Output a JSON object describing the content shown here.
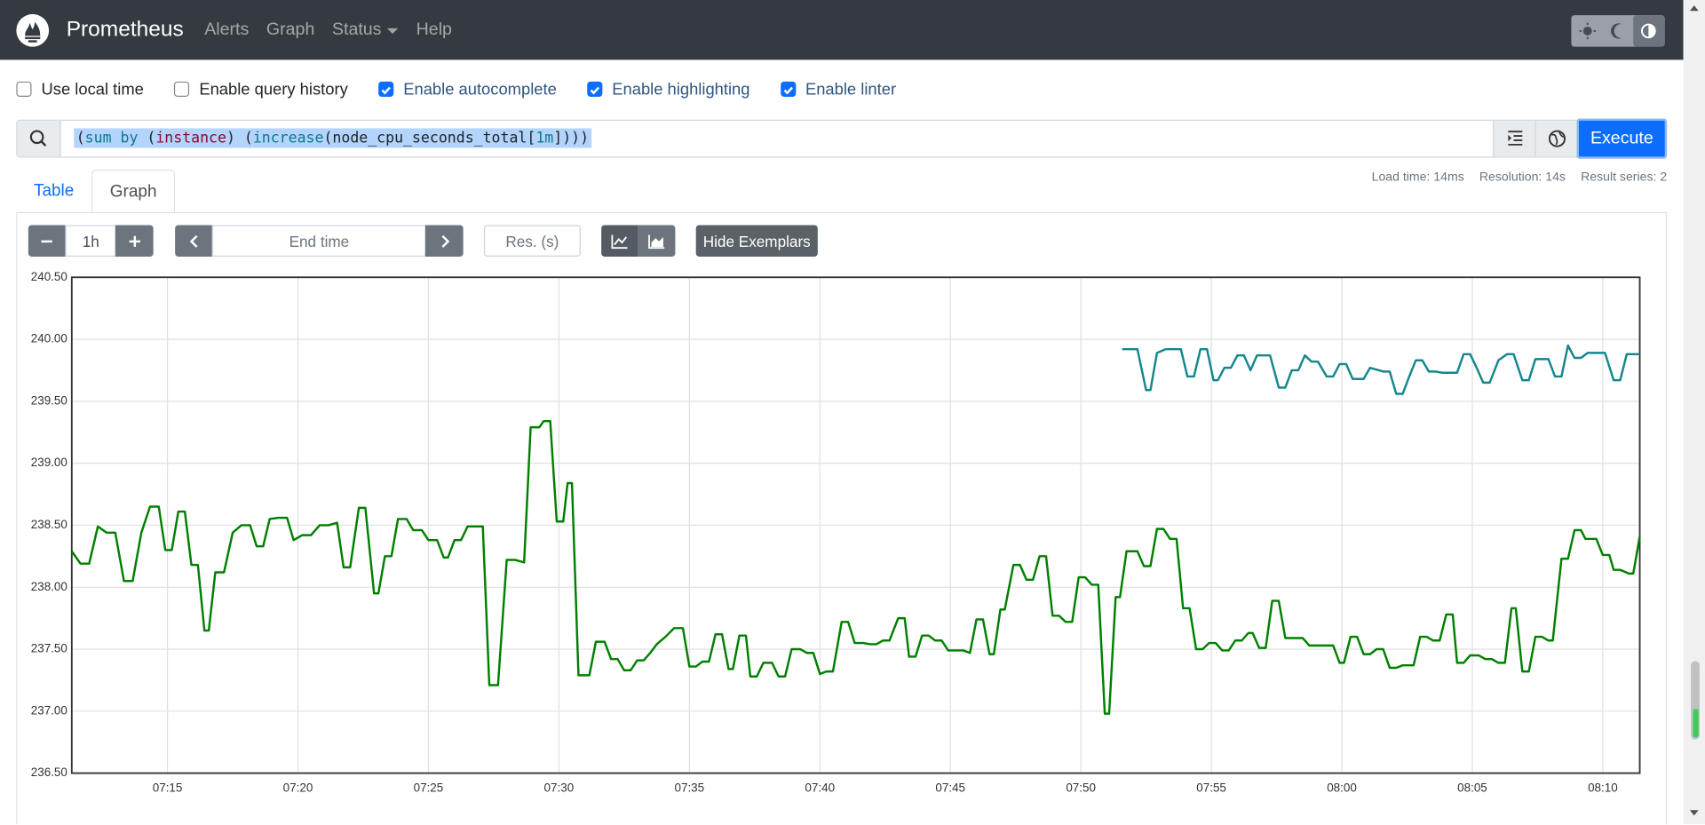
{
  "navbar": {
    "brand": "Prometheus",
    "links": [
      "Alerts",
      "Graph",
      "Status",
      "Help"
    ]
  },
  "options": [
    {
      "label": "Use local time",
      "checked": false
    },
    {
      "label": "Enable query history",
      "checked": false
    },
    {
      "label": "Enable autocomplete",
      "checked": true
    },
    {
      "label": "Enable highlighting",
      "checked": true
    },
    {
      "label": "Enable linter",
      "checked": true
    }
  ],
  "query": {
    "tokens": [
      {
        "text": "(",
        "color": "#212529"
      },
      {
        "text": "sum by",
        "color": "#0b7a86"
      },
      {
        "text": " (",
        "color": "#212529"
      },
      {
        "text": "instance",
        "color": "#8b0a2a"
      },
      {
        "text": ") (",
        "color": "#212529"
      },
      {
        "text": "increase",
        "color": "#0b7a86"
      },
      {
        "text": "(node_cpu_seconds_total[",
        "color": "#212529"
      },
      {
        "text": "1m",
        "color": "#0b7a86"
      },
      {
        "text": "])))",
        "color": "#212529"
      }
    ],
    "execute": "Execute"
  },
  "tabs": [
    "Table",
    "Graph"
  ],
  "stats": [
    "Load time: 14ms",
    "Resolution: 14s",
    "Result series: 2"
  ],
  "controls": {
    "range": "1h",
    "end_time": "End time",
    "resolution": "Res. (s)",
    "exemplars": "Hide Exemplars"
  },
  "chart_data": {
    "type": "line",
    "xlim": [
      "07:11:20",
      "08:11:25"
    ],
    "xticks": [
      "07:15",
      "07:20",
      "07:25",
      "07:30",
      "07:35",
      "07:40",
      "07:45",
      "07:50",
      "07:55",
      "08:00",
      "08:05",
      "08:10"
    ],
    "ylim": [
      236.5,
      240.5
    ],
    "yticks": [
      {
        "value": 236.5,
        "label": "236.50"
      },
      {
        "value": 237,
        "label": "237.00"
      },
      {
        "value": 237.5,
        "label": "237.50"
      },
      {
        "value": 238,
        "label": "238.00"
      },
      {
        "value": 238.5,
        "label": "238.50"
      },
      {
        "value": 239,
        "label": "239.00"
      },
      {
        "value": 239.5,
        "label": "239.50"
      },
      {
        "value": 240,
        "label": "240.00"
      },
      {
        "value": 240.5,
        "label": "240.50"
      }
    ],
    "grid": true,
    "series": [
      {
        "color": "#008000",
        "x": [
          "07:11:20",
          "07:11:40",
          "07:12:00",
          "07:12:20",
          "07:12:40",
          "07:13:00",
          "07:13:20",
          "07:13:40",
          "07:14:00",
          "07:14:20",
          "07:14:40",
          "07:14:55",
          "07:15:10",
          "07:15:25",
          "07:15:40",
          "07:15:55",
          "07:16:10",
          "07:16:25",
          "07:16:35",
          "07:16:50",
          "07:17:10",
          "07:17:30",
          "07:17:50",
          "07:18:10",
          "07:18:25",
          "07:18:40",
          "07:18:55",
          "07:19:15",
          "07:19:35",
          "07:19:50",
          "07:20:10",
          "07:20:30",
          "07:20:50",
          "07:21:10",
          "07:21:30",
          "07:21:45",
          "07:22:00",
          "07:22:20",
          "07:22:35",
          "07:22:55",
          "07:23:05",
          "07:23:20",
          "07:23:35",
          "07:23:50",
          "07:24:10",
          "07:24:25",
          "07:24:45",
          "07:25:00",
          "07:25:20",
          "07:25:35",
          "07:25:45",
          "07:26:00",
          "07:26:15",
          "07:26:30",
          "07:26:50",
          "07:27:05",
          "07:27:20",
          "07:27:40",
          "07:28:00",
          "07:28:20",
          "07:28:40",
          "07:28:55",
          "07:29:15",
          "07:29:25",
          "07:29:40",
          "07:29:55",
          "07:30:10",
          "07:30:20",
          "07:30:30",
          "07:30:45",
          "07:31:10",
          "07:31:25",
          "07:31:45",
          "07:32:00",
          "07:32:15",
          "07:32:30",
          "07:32:45",
          "07:33:00",
          "07:33:15",
          "07:33:30",
          "07:33:45",
          "07:34:05",
          "07:34:25",
          "07:34:45",
          "07:35:00",
          "07:35:15",
          "07:35:30",
          "07:35:45",
          "07:36:00",
          "07:36:15",
          "07:36:30",
          "07:36:40",
          "07:36:55",
          "07:37:10",
          "07:37:20",
          "07:37:35",
          "07:37:50",
          "07:38:10",
          "07:38:25",
          "07:38:40",
          "07:38:55",
          "07:39:15",
          "07:39:30",
          "07:39:45",
          "07:40:00",
          "07:40:15",
          "07:40:30",
          "07:40:50",
          "07:41:05",
          "07:41:20",
          "07:41:40",
          "07:41:55",
          "07:42:10",
          "07:42:25",
          "07:42:40",
          "07:43:00",
          "07:43:15",
          "07:43:25",
          "07:43:40",
          "07:43:55",
          "07:44:10",
          "07:44:25",
          "07:44:40",
          "07:44:55",
          "07:45:10",
          "07:45:30",
          "07:45:45",
          "07:46:00",
          "07:46:15",
          "07:46:30",
          "07:46:40",
          "07:46:55",
          "07:47:05",
          "07:47:25",
          "07:47:40",
          "07:47:55",
          "07:48:10",
          "07:48:25",
          "07:48:40",
          "07:48:55",
          "07:49:10",
          "07:49:25",
          "07:49:40",
          "07:49:55",
          "07:50:10",
          "07:50:25",
          "07:50:40",
          "07:50:55",
          "07:51:05",
          "07:51:20",
          "07:51:30",
          "07:51:45",
          "07:52:10",
          "07:52:25",
          "07:52:40",
          "07:52:55",
          "07:53:10",
          "07:53:25",
          "07:53:40",
          "07:53:55",
          "07:54:10",
          "07:54:25",
          "07:54:40",
          "07:54:55",
          "07:55:10",
          "07:55:25",
          "07:55:40",
          "07:55:55",
          "07:56:10",
          "07:56:25",
          "07:56:35",
          "07:56:50",
          "07:57:05",
          "07:57:20",
          "07:57:35",
          "07:57:50",
          "07:58:30",
          "07:58:45",
          "07:59:40",
          "07:59:55",
          "08:00:05",
          "08:00:20",
          "08:00:35",
          "08:00:50",
          "08:01:05",
          "08:01:20",
          "08:01:35",
          "08:01:50",
          "08:02:05",
          "08:02:20",
          "08:02:45",
          "08:03:00",
          "08:03:15",
          "08:03:30",
          "08:03:45",
          "08:04:00",
          "08:04:15",
          "08:04:25",
          "08:04:40",
          "08:04:55",
          "08:05:15",
          "08:05:30",
          "08:05:45",
          "08:06:00",
          "08:06:15",
          "08:06:30",
          "08:06:40",
          "08:06:55",
          "08:07:10",
          "08:07:25",
          "08:07:40",
          "08:07:55",
          "08:08:05",
          "08:08:25",
          "08:08:40",
          "08:08:55",
          "08:09:10",
          "08:09:20",
          "08:09:45",
          "08:10:00",
          "08:10:15",
          "08:10:25",
          "08:10:40",
          "08:11:00",
          "08:11:10",
          "08:11:25"
        ],
        "values": [
          238.29,
          238.19,
          238.19,
          238.49,
          238.44,
          238.44,
          238.05,
          238.05,
          238.44,
          238.65,
          238.65,
          238.3,
          238.3,
          238.61,
          238.61,
          238.18,
          238.18,
          237.65,
          237.65,
          238.12,
          238.12,
          238.44,
          238.5,
          238.5,
          238.33,
          238.33,
          238.55,
          238.56,
          238.56,
          238.38,
          238.42,
          238.42,
          238.5,
          238.5,
          238.52,
          238.16,
          238.16,
          238.64,
          238.64,
          237.95,
          237.95,
          238.25,
          238.25,
          238.55,
          238.55,
          238.46,
          238.46,
          238.38,
          238.38,
          238.24,
          238.24,
          238.38,
          238.38,
          238.49,
          238.49,
          238.49,
          237.21,
          237.21,
          238.22,
          238.22,
          238.2,
          239.29,
          239.29,
          239.34,
          239.34,
          238.53,
          238.53,
          238.84,
          238.84,
          237.29,
          237.29,
          237.56,
          237.56,
          237.42,
          237.42,
          237.33,
          237.33,
          237.41,
          237.41,
          237.47,
          237.54,
          237.6,
          237.67,
          237.67,
          237.36,
          237.36,
          237.4,
          237.4,
          237.62,
          237.62,
          237.34,
          237.34,
          237.61,
          237.61,
          237.28,
          237.28,
          237.39,
          237.39,
          237.28,
          237.28,
          237.5,
          237.5,
          237.47,
          237.47,
          237.3,
          237.32,
          237.32,
          237.72,
          237.72,
          237.55,
          237.55,
          237.54,
          237.54,
          237.57,
          237.57,
          237.75,
          237.75,
          237.44,
          237.44,
          237.61,
          237.61,
          237.57,
          237.57,
          237.49,
          237.49,
          237.49,
          237.47,
          237.74,
          237.74,
          237.46,
          237.46,
          237.82,
          237.82,
          238.18,
          238.18,
          238.06,
          238.06,
          238.25,
          238.25,
          237.77,
          237.77,
          237.72,
          237.72,
          238.08,
          238.08,
          238.02,
          238.02,
          236.98,
          236.98,
          237.92,
          237.92,
          238.29,
          238.29,
          238.17,
          238.17,
          238.47,
          238.47,
          238.39,
          238.39,
          237.83,
          237.83,
          237.5,
          237.5,
          237.55,
          237.55,
          237.49,
          237.49,
          237.57,
          237.57,
          237.63,
          237.63,
          237.51,
          237.51,
          237.89,
          237.89,
          237.59,
          237.59,
          237.53,
          237.53,
          237.39,
          237.39,
          237.6,
          237.6,
          237.46,
          237.46,
          237.5,
          237.5,
          237.35,
          237.35,
          237.37,
          237.37,
          237.6,
          237.6,
          237.57,
          237.57,
          237.78,
          237.78,
          237.39,
          237.39,
          237.45,
          237.45,
          237.42,
          237.42,
          237.39,
          237.39,
          237.83,
          237.83,
          237.32,
          237.32,
          237.6,
          237.6,
          237.57,
          237.57,
          238.23,
          238.23,
          238.46,
          238.46,
          238.39,
          238.39,
          238.26,
          238.26,
          238.14,
          238.14,
          238.11,
          238.11,
          238.41
        ]
      },
      {
        "color": "#14878c",
        "x": [
          "07:51:35",
          "07:52:10",
          "07:52:30",
          "07:52:40",
          "07:52:55",
          "07:53:15",
          "07:53:50",
          "07:54:05",
          "07:54:20",
          "07:54:35",
          "07:54:50",
          "07:55:05",
          "07:55:15",
          "07:55:30",
          "07:55:45",
          "07:56:00",
          "07:56:15",
          "07:56:30",
          "07:56:45",
          "07:57:15",
          "07:57:35",
          "07:57:50",
          "07:58:05",
          "07:58:20",
          "07:58:35",
          "07:58:50",
          "07:59:05",
          "07:59:25",
          "07:59:40",
          "07:59:55",
          "08:00:10",
          "08:00:25",
          "08:00:50",
          "08:01:05",
          "08:01:35",
          "08:01:50",
          "08:02:05",
          "08:02:20",
          "08:02:35",
          "08:02:50",
          "08:03:05",
          "08:03:20",
          "08:03:35",
          "08:03:50",
          "08:04:25",
          "08:04:40",
          "08:04:55",
          "08:05:10",
          "08:05:25",
          "08:05:40",
          "08:06:00",
          "08:06:20",
          "08:06:35",
          "08:06:55",
          "08:07:10",
          "08:07:25",
          "08:07:55",
          "08:08:10",
          "08:08:25",
          "08:08:40",
          "08:08:55",
          "08:09:10",
          "08:09:25",
          "08:10:05",
          "08:10:25",
          "08:10:40",
          "08:10:55",
          "08:11:25"
        ],
        "values": [
          239.92,
          239.92,
          239.59,
          239.59,
          239.89,
          239.92,
          239.92,
          239.7,
          239.7,
          239.92,
          239.92,
          239.67,
          239.67,
          239.77,
          239.77,
          239.87,
          239.87,
          239.75,
          239.87,
          239.87,
          239.61,
          239.61,
          239.75,
          239.75,
          239.87,
          239.82,
          239.82,
          239.7,
          239.7,
          239.8,
          239.8,
          239.68,
          239.68,
          239.77,
          239.74,
          239.74,
          239.56,
          239.56,
          239.7,
          239.83,
          239.83,
          239.74,
          239.74,
          239.73,
          239.73,
          239.88,
          239.88,
          239.77,
          239.65,
          239.65,
          239.83,
          239.88,
          239.88,
          239.67,
          239.67,
          239.84,
          239.84,
          239.7,
          239.7,
          239.95,
          239.85,
          239.85,
          239.89,
          239.89,
          239.67,
          239.67,
          239.88,
          239.88
        ]
      }
    ]
  }
}
